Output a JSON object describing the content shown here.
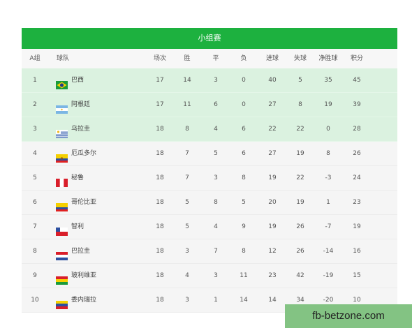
{
  "title": "小组赛",
  "headers": {
    "group": "A组",
    "team": "球队",
    "played": "场次",
    "won": "胜",
    "drawn": "平",
    "lost": "负",
    "gf": "进球",
    "ga": "失球",
    "gd": "净胜球",
    "pts": "积分"
  },
  "qualified_color": "#dbf2e0",
  "accent": "#1db13f",
  "rows": [
    {
      "rank": "1",
      "team": "巴西",
      "flag": "brazil-flag",
      "p": "17",
      "w": "14",
      "d": "3",
      "l": "0",
      "gf": "40",
      "ga": "5",
      "gd": "35",
      "pts": "45"
    },
    {
      "rank": "2",
      "team": "阿根廷",
      "flag": "argentina-flag",
      "p": "17",
      "w": "11",
      "d": "6",
      "l": "0",
      "gf": "27",
      "ga": "8",
      "gd": "19",
      "pts": "39"
    },
    {
      "rank": "3",
      "team": "乌拉圭",
      "flag": "uruguay-flag",
      "p": "18",
      "w": "8",
      "d": "4",
      "l": "6",
      "gf": "22",
      "ga": "22",
      "gd": "0",
      "pts": "28"
    },
    {
      "rank": "4",
      "team": "厄瓜多尔",
      "flag": "ecuador-flag",
      "p": "18",
      "w": "7",
      "d": "5",
      "l": "6",
      "gf": "27",
      "ga": "19",
      "gd": "8",
      "pts": "26"
    },
    {
      "rank": "5",
      "team": "秘鲁",
      "flag": "peru-flag",
      "p": "18",
      "w": "7",
      "d": "3",
      "l": "8",
      "gf": "19",
      "ga": "22",
      "gd": "-3",
      "pts": "24"
    },
    {
      "rank": "6",
      "team": "哥伦比亚",
      "flag": "colombia-flag",
      "p": "18",
      "w": "5",
      "d": "8",
      "l": "5",
      "gf": "20",
      "ga": "19",
      "gd": "1",
      "pts": "23"
    },
    {
      "rank": "7",
      "team": "智利",
      "flag": "chile-flag",
      "p": "18",
      "w": "5",
      "d": "4",
      "l": "9",
      "gf": "19",
      "ga": "26",
      "gd": "-7",
      "pts": "19"
    },
    {
      "rank": "8",
      "team": "巴拉圭",
      "flag": "paraguay-flag",
      "p": "18",
      "w": "3",
      "d": "7",
      "l": "8",
      "gf": "12",
      "ga": "26",
      "gd": "-14",
      "pts": "16"
    },
    {
      "rank": "9",
      "team": "玻利维亚",
      "flag": "bolivia-flag",
      "p": "18",
      "w": "4",
      "d": "3",
      "l": "11",
      "gf": "23",
      "ga": "42",
      "gd": "-19",
      "pts": "15"
    },
    {
      "rank": "10",
      "team": "委内瑞拉",
      "flag": "venezuela-flag",
      "p": "18",
      "w": "3",
      "d": "1",
      "l": "14",
      "gf": "14",
      "ga": "34",
      "gd": "-20",
      "pts": "10"
    }
  ],
  "watermark": "fb-betzone.com"
}
